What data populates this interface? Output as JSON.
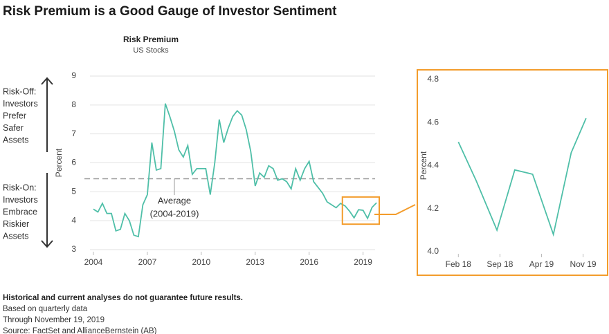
{
  "title": "Risk Premium is a Good Gauge of Investor Sentiment",
  "notes": [
    "Historical and current analyses do not guarantee future results.",
    "Based on quarterly data",
    "Through November 19, 2019",
    "Source: FactSet and AllianceBernstein (AB)"
  ],
  "side_labels": {
    "risk_off": [
      "Risk-Off:",
      "Investors",
      "Prefer",
      "Safer",
      "Assets"
    ],
    "risk_on": [
      "Risk-On:",
      "Investors",
      "Embrace",
      "Riskier",
      "Assets"
    ]
  },
  "chart_data": [
    {
      "type": "line",
      "title": "Risk Premium",
      "subtitle": "US Stocks",
      "y_label": "Percent",
      "color": "#4fbfa8",
      "x": [
        2004,
        2004.25,
        2004.5,
        2004.75,
        2005,
        2005.25,
        2005.5,
        2005.75,
        2006,
        2006.25,
        2006.5,
        2006.75,
        2007,
        2007.25,
        2007.5,
        2007.75,
        2008,
        2008.25,
        2008.5,
        2008.75,
        2009,
        2009.25,
        2009.5,
        2009.75,
        2010,
        2010.25,
        2010.5,
        2010.75,
        2011,
        2011.25,
        2011.5,
        2011.75,
        2012,
        2012.25,
        2012.5,
        2012.75,
        2013,
        2013.25,
        2013.5,
        2013.75,
        2014,
        2014.25,
        2014.5,
        2014.75,
        2015,
        2015.25,
        2015.5,
        2015.75,
        2016,
        2016.25,
        2016.5,
        2016.75,
        2017,
        2017.25,
        2017.5,
        2017.75,
        2018,
        2018.25,
        2018.5,
        2018.75,
        2019,
        2019.25,
        2019.5,
        2019.75
      ],
      "values": [
        4.4,
        4.3,
        4.6,
        4.25,
        4.25,
        3.65,
        3.7,
        4.25,
        4.0,
        3.5,
        3.45,
        4.55,
        4.9,
        6.7,
        5.75,
        5.8,
        8.05,
        7.6,
        7.1,
        6.45,
        6.2,
        6.6,
        5.6,
        5.8,
        5.8,
        5.8,
        4.9,
        6.0,
        7.5,
        6.7,
        7.2,
        7.6,
        7.8,
        7.65,
        7.15,
        6.4,
        5.2,
        5.65,
        5.5,
        5.9,
        5.8,
        5.4,
        5.45,
        5.35,
        5.1,
        5.8,
        5.4,
        5.8,
        6.05,
        5.35,
        5.15,
        4.95,
        4.65,
        4.55,
        4.45,
        4.6,
        4.51,
        4.33,
        4.1,
        4.38,
        4.36,
        4.08,
        4.46,
        4.62
      ],
      "xlim": [
        2003.5,
        2019.9
      ],
      "xticks": [
        2004,
        2007,
        2010,
        2013,
        2016,
        2019
      ],
      "ylim": [
        3,
        9
      ],
      "yticks": [
        3,
        4,
        5,
        6,
        7,
        8,
        9
      ],
      "grid": true,
      "average": 5.45,
      "average_label": [
        "Average",
        "(2004-2019)"
      ],
      "average_color": "#999999",
      "highlight": {
        "xlim": [
          2017.85,
          2019.9
        ],
        "ylim": [
          3.88,
          4.82
        ],
        "color": "#f39c2b"
      }
    },
    {
      "type": "line",
      "y_label": "Percent",
      "color": "#4fbfa8",
      "x": [
        0,
        3,
        6.5,
        9.5,
        12.5,
        16,
        19,
        21.5
      ],
      "values": [
        4.51,
        4.33,
        4.1,
        4.38,
        4.36,
        4.08,
        4.46,
        4.62
      ],
      "xlim": [
        -1.9,
        22.1
      ],
      "xticks": [
        {
          "value": 0,
          "label": "Feb 18"
        },
        {
          "value": 7,
          "label": "Sep 18"
        },
        {
          "value": 14,
          "label": "Apr 19"
        },
        {
          "value": 21,
          "label": "Nov 19"
        }
      ],
      "ylim": [
        4.0,
        4.8
      ],
      "yticks": [
        {
          "value": 4.0,
          "label": "4.0"
        },
        {
          "value": 4.2,
          "label": "4.2"
        },
        {
          "value": 4.4,
          "label": "4.4"
        },
        {
          "value": 4.6,
          "label": "4.6"
        },
        {
          "value": 4.8,
          "label": "4.8"
        }
      ],
      "grid": false,
      "frame_color": "#f39c2b"
    }
  ]
}
